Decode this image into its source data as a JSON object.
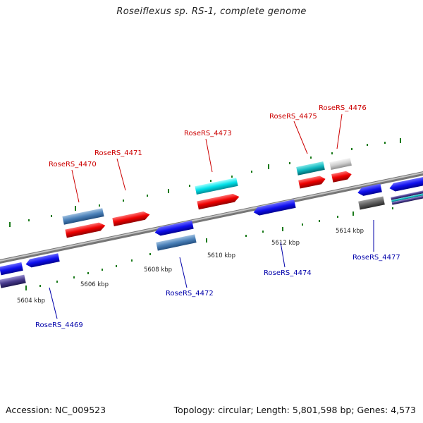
{
  "title": "Roseiflexus sp. RS-1, complete genome",
  "accession": "Accession: NC_009523",
  "summary": "Topology: circular; Length: 5,801,598 bp; Genes: 4,573",
  "colors": {
    "backbone": "#8a8a8a",
    "forward_label": "#cc0000",
    "reverse_label": "#0000aa",
    "tick": "#1a7a1a"
  },
  "ticks": [
    "5604 kbp",
    "5606 kbp",
    "5608 kbp",
    "5610 kbp",
    "5612 kbp",
    "5614 kbp"
  ],
  "genes": [
    {
      "name": "RoseRS_4469",
      "strand": "reverse"
    },
    {
      "name": "RoseRS_4470",
      "strand": "forward"
    },
    {
      "name": "RoseRS_4471",
      "strand": "forward"
    },
    {
      "name": "RoseRS_4472",
      "strand": "reverse"
    },
    {
      "name": "RoseRS_4473",
      "strand": "forward"
    },
    {
      "name": "RoseRS_4474",
      "strand": "reverse"
    },
    {
      "name": "RoseRS_4475",
      "strand": "forward"
    },
    {
      "name": "RoseRS_4476",
      "strand": "forward"
    },
    {
      "name": "RoseRS_4477",
      "strand": "reverse"
    }
  ]
}
